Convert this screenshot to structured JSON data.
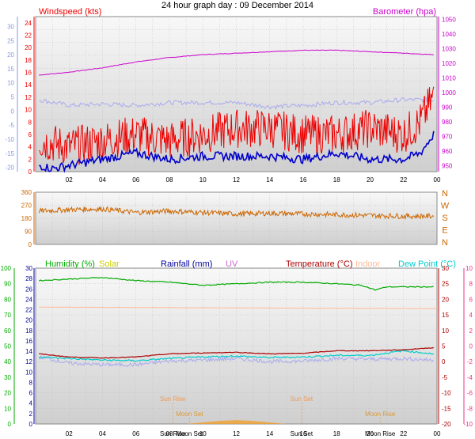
{
  "title": "24 hour graph day : 09 December 2014",
  "colors": {
    "wind": "#ee0000",
    "gust_line": "#0000cc",
    "baro": "#cc00cc",
    "temp_axis": "#8899dd",
    "winddir": "#cc6600",
    "dir_axis": "#cc6600",
    "humidity": "#00aa00",
    "solar": "#cccc00",
    "rain": "#000099",
    "uv": "#cc66cc",
    "temperature": "#aa0000",
    "indoor": "#ffbb99",
    "dewpoint": "#00cccc",
    "temp2": "#aaaaee",
    "pink_axis": "#ee3388",
    "sun": "#ee9955",
    "moon": "#dd9933",
    "grid": "#bbbbbb",
    "plot_bg_top": "#f8f8f8",
    "plot_bg_bottom": "#cfcfcf"
  },
  "chart_data": [
    {
      "type": "line",
      "panel": "top",
      "legend": [
        "Windspeed (kts)",
        "Barometer (hpa)"
      ],
      "x_ticks": [
        "02",
        "04",
        "06",
        "08",
        "10",
        "12",
        "14",
        "16",
        "18",
        "20",
        "22",
        "00"
      ],
      "xlim": [
        0,
        24
      ],
      "left_axis": {
        "ticks": [
          0,
          2,
          4,
          6,
          8,
          10,
          12,
          14,
          16,
          18,
          20,
          22,
          24
        ],
        "ylim": [
          0,
          25
        ]
      },
      "outer_axis": {
        "ticks": [
          -20,
          -15,
          -10,
          -5,
          0,
          5,
          10,
          15,
          20,
          25,
          30
        ],
        "ylim": [
          -21.5,
          33.5
        ]
      },
      "right_axis": {
        "ticks": [
          950,
          960,
          970,
          980,
          990,
          1000,
          1010,
          1020,
          1030,
          1040,
          1050
        ],
        "ylim": [
          946,
          1052
        ]
      },
      "series": [
        {
          "name": "Barometer (hpa)",
          "axis": "right",
          "x": [
            0.2,
            2,
            4,
            6,
            8,
            10,
            12,
            14,
            16,
            18,
            20,
            22,
            23.8
          ],
          "y": [
            1012,
            1014,
            1017,
            1021,
            1024,
            1026,
            1027,
            1028,
            1029,
            1029,
            1028,
            1027,
            1026
          ]
        },
        {
          "name": "",
          "role": "temperature trace",
          "axis": "outer",
          "x": [
            0.2,
            2,
            4,
            6,
            8,
            10,
            12,
            14,
            16,
            18,
            20,
            22,
            23.8
          ],
          "y": [
            4,
            2,
            2.5,
            2,
            3,
            3,
            3,
            1.5,
            2,
            3,
            3,
            4,
            4
          ]
        },
        {
          "name": "",
          "role": "windspeed",
          "axis": "left",
          "x": [
            0.2,
            2,
            4,
            6,
            8,
            10,
            12,
            14,
            16,
            18,
            20,
            22,
            23,
            23.8
          ],
          "y": [
            5,
            4,
            5,
            6,
            5,
            6,
            7,
            7,
            6,
            6,
            7,
            6,
            8,
            12
          ]
        },
        {
          "name": "",
          "role": "average wind",
          "axis": "left",
          "x": [
            0.2,
            1,
            2,
            4,
            6,
            8,
            10,
            12,
            14,
            16,
            18,
            20,
            22,
            23,
            23.8
          ],
          "y": [
            1,
            0.5,
            1,
            2,
            3,
            2,
            2.5,
            2.5,
            2.5,
            2,
            3,
            2,
            2,
            3,
            6
          ]
        }
      ]
    },
    {
      "type": "line",
      "panel": "middle",
      "name": "Wind direction",
      "left_axis": {
        "ticks": [
          0,
          90,
          180,
          270,
          360
        ],
        "ylim": [
          0,
          360
        ]
      },
      "right_labels": [
        "N",
        "W",
        "S",
        "E",
        "N"
      ],
      "x": [
        0.2,
        2,
        4,
        6,
        8,
        10,
        12,
        14,
        16,
        18,
        20,
        22,
        23.8
      ],
      "y": [
        230,
        240,
        245,
        220,
        230,
        220,
        210,
        215,
        210,
        205,
        200,
        195,
        195
      ]
    },
    {
      "type": "line",
      "panel": "bottom",
      "legend": [
        "Humidity (%)",
        "Solar",
        "Rainfall (mm)",
        "UV",
        "Temperature (°C)",
        "Indoor",
        "Dew Point (°C)"
      ],
      "x_ticks": [
        "02",
        "04",
        "06",
        "08",
        "10",
        "12",
        "14",
        "16",
        "18",
        "20",
        "22",
        "00"
      ],
      "xlim": [
        0,
        24
      ],
      "axis_left_humidity": {
        "ticks": [
          0,
          10,
          20,
          30,
          40,
          50,
          60,
          70,
          80,
          90,
          100
        ],
        "ylim": [
          0,
          100
        ]
      },
      "axis_left_rain": {
        "ticks": [
          0,
          2,
          4,
          6,
          8,
          10,
          12,
          14,
          16,
          18,
          20,
          22,
          24,
          26,
          28,
          30
        ],
        "ylim": [
          0,
          30
        ]
      },
      "axis_right_temp": {
        "ticks": [
          -20,
          -15,
          -10,
          -5,
          0,
          5,
          10,
          15,
          20,
          25,
          30
        ],
        "ylim": [
          -20,
          30
        ]
      },
      "axis_right_uv": {
        "ticks": [
          -10,
          -8,
          -6,
          -4,
          -2,
          0,
          2,
          4,
          6,
          8,
          10
        ],
        "ylim": [
          -10,
          10
        ]
      },
      "events": [
        {
          "label": "Sun Rise",
          "x": 8.2
        },
        {
          "label": "Moon Set",
          "x": 9.2
        },
        {
          "label": "Sun Set",
          "x": 15.9
        },
        {
          "label": "Moon Rise",
          "x": 20.6
        }
      ],
      "series": [
        {
          "name": "Humidity (%)",
          "axis": "humidity",
          "x": [
            0.2,
            2,
            4,
            6,
            8,
            10,
            12,
            14,
            16,
            18,
            19.5,
            20.3,
            21,
            22,
            23.8
          ],
          "y": [
            92,
            93,
            94,
            92,
            91,
            89,
            90,
            91,
            91,
            90,
            89,
            86,
            88,
            88,
            88
          ]
        },
        {
          "name": "Indoor",
          "axis": "temp",
          "x": [
            0.2,
            24
          ],
          "y": [
            17.5,
            17
          ]
        },
        {
          "name": "Temperature (°C)",
          "axis": "temp",
          "x": [
            0.2,
            2,
            4,
            6,
            8,
            10,
            12,
            14,
            16,
            18,
            20,
            22,
            23.8
          ],
          "y": [
            2.5,
            1.5,
            1.2,
            1.5,
            2.5,
            2.8,
            3,
            2.5,
            2.7,
            3.5,
            3.5,
            3.8,
            4.5
          ]
        },
        {
          "name": "Dew Point (°C)",
          "axis": "temp",
          "x": [
            0.2,
            2,
            4,
            6,
            8,
            10,
            12,
            14,
            16,
            18,
            20,
            22,
            23.8
          ],
          "y": [
            1.5,
            1,
            0.5,
            0.3,
            1,
            1.5,
            1.8,
            1.3,
            1.5,
            2,
            2,
            3.5,
            2.5
          ]
        },
        {
          "name": "",
          "role": "temperature trace",
          "axis": "temp",
          "x": [
            0.2,
            2,
            4,
            6,
            8,
            10,
            12,
            14,
            16,
            18,
            20,
            22,
            23.8
          ],
          "y": [
            1.5,
            -0.5,
            -1,
            -1,
            0.2,
            0.5,
            1,
            0,
            0.2,
            1,
            0.8,
            1,
            0.5
          ]
        },
        {
          "name": "Solar",
          "axis": "humidity",
          "x": [
            9,
            10,
            11,
            12,
            13,
            14,
            15
          ],
          "y": [
            0,
            1,
            2,
            2.5,
            2,
            1,
            0
          ]
        }
      ]
    }
  ]
}
